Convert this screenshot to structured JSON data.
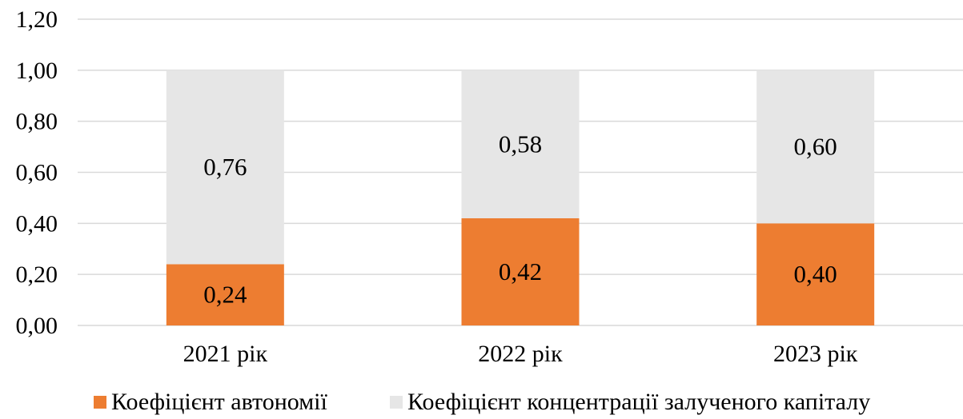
{
  "chart_data": {
    "type": "bar",
    "stacked": true,
    "categories": [
      "2021 рік",
      "2022 рік",
      "2023 рік"
    ],
    "series": [
      {
        "name": "Коефіцієнт автономії",
        "values": [
          0.24,
          0.42,
          0.4
        ],
        "labels": [
          "0,24",
          "0,42",
          "0,40"
        ],
        "color": "#ED7D31"
      },
      {
        "name": "Коефіцієнт концентрації залученого капіталу",
        "values": [
          0.76,
          0.58,
          0.6
        ],
        "labels": [
          "0,76",
          "0,58",
          "0,60"
        ],
        "color": "#E6E6E6"
      }
    ],
    "yticks": [
      "0,00",
      "0,20",
      "0,40",
      "0,60",
      "0,80",
      "1,00",
      "1,20"
    ],
    "ylim": [
      0,
      1.2
    ],
    "grid": true,
    "legend": "bottom",
    "gridline_color": "#D9D9D9"
  }
}
